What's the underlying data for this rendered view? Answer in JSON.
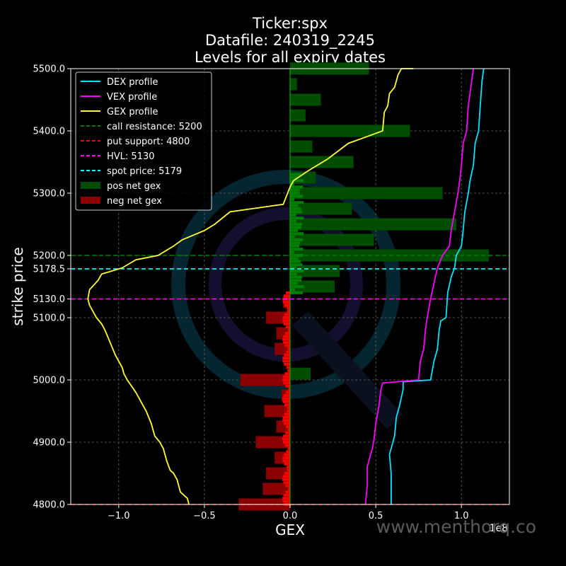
{
  "chart_data": {
    "type": "bar",
    "title_lines": [
      "Ticker:spx",
      "Datafile: 240319_2245",
      "Levels for all expiry dates"
    ],
    "xlabel": "GEX",
    "ylabel": "strike price",
    "x_offset_text": "1e8",
    "xlim": [
      -1.28,
      1.28
    ],
    "ylim": [
      4800,
      5500
    ],
    "grid": true,
    "legend_position": "top-left",
    "watermark": "www.menthorq.co",
    "x_ticks": [
      {
        "v": -1.0,
        "label": "−1.0"
      },
      {
        "v": -0.5,
        "label": "−0.5"
      },
      {
        "v": 0.0,
        "label": "0.0"
      },
      {
        "v": 0.5,
        "label": "0.5"
      },
      {
        "v": 1.0,
        "label": "1.0"
      }
    ],
    "y_ticks": [
      {
        "v": 4800,
        "label": "4800.0"
      },
      {
        "v": 4900,
        "label": "4900.0"
      },
      {
        "v": 5000,
        "label": "5000.0"
      },
      {
        "v": 5100,
        "label": "5100.0"
      },
      {
        "v": 5130,
        "label": "5130.0"
      },
      {
        "v": 5178.5,
        "label": "5178.5"
      },
      {
        "v": 5200,
        "label": "5200.0"
      },
      {
        "v": 5300,
        "label": "5300.0"
      },
      {
        "v": 5400,
        "label": "5400.0"
      },
      {
        "v": 5500,
        "label": "5500.0"
      }
    ],
    "levels": [
      {
        "name": "call resistance: 5200",
        "y": 5200,
        "color": "#008000"
      },
      {
        "name": "put support: 4800",
        "y": 4800,
        "color": "#ff0000"
      },
      {
        "name": "HVL: 5130",
        "y": 5130,
        "color": "#ff00ff"
      },
      {
        "name": "spot price: 5179",
        "y": 5178.5,
        "color": "#00ffff"
      }
    ],
    "bar_series": [
      {
        "name": "pos net gex",
        "color": "#004d00"
      },
      {
        "name": "neg net gex",
        "color": "#8b0000"
      }
    ],
    "pos_gex": [
      {
        "strike": 5500,
        "value": 0.46
      },
      {
        "strike": 5475,
        "value": 0.04
      },
      {
        "strike": 5450,
        "value": 0.18
      },
      {
        "strike": 5425,
        "value": 0.09
      },
      {
        "strike": 5400,
        "value": 0.7
      },
      {
        "strike": 5375,
        "value": 0.13
      },
      {
        "strike": 5350,
        "value": 0.37
      },
      {
        "strike": 5325,
        "value": 0.15
      },
      {
        "strike": 5300,
        "value": 0.89
      },
      {
        "strike": 5275,
        "value": 0.36
      },
      {
        "strike": 5250,
        "value": 0.97
      },
      {
        "strike": 5225,
        "value": 0.49
      },
      {
        "strike": 5200,
        "value": 1.16
      },
      {
        "strike": 5175,
        "value": 0.29
      },
      {
        "strike": 5150,
        "value": 0.26
      },
      {
        "strike": 5010,
        "value": 0.12
      }
    ],
    "neg_gex": [
      {
        "strike": 5125,
        "value": -0.04
      },
      {
        "strike": 5100,
        "value": -0.14
      },
      {
        "strike": 5075,
        "value": -0.08
      },
      {
        "strike": 5050,
        "value": -0.09
      },
      {
        "strike": 5000,
        "value": -0.29
      },
      {
        "strike": 4975,
        "value": -0.05
      },
      {
        "strike": 4950,
        "value": -0.15
      },
      {
        "strike": 4925,
        "value": -0.08
      },
      {
        "strike": 4900,
        "value": -0.2
      },
      {
        "strike": 4875,
        "value": -0.09
      },
      {
        "strike": 4850,
        "value": -0.14
      },
      {
        "strike": 4825,
        "value": -0.16
      },
      {
        "strike": 4800,
        "value": -0.3
      }
    ],
    "series": [
      {
        "name": "DEX profile",
        "color": "#00e5ff",
        "points": [
          [
            0.59,
            4800
          ],
          [
            0.59,
            4850
          ],
          [
            0.58,
            4880
          ],
          [
            0.6,
            4900
          ],
          [
            0.61,
            4910
          ],
          [
            0.62,
            4940
          ],
          [
            0.64,
            4960
          ],
          [
            0.66,
            4985
          ],
          [
            0.66,
            4997
          ],
          [
            0.82,
            5000
          ],
          [
            0.84,
            5030
          ],
          [
            0.86,
            5050
          ],
          [
            0.87,
            5080
          ],
          [
            0.88,
            5095
          ],
          [
            0.91,
            5100
          ],
          [
            0.92,
            5140
          ],
          [
            0.94,
            5165
          ],
          [
            0.96,
            5180
          ],
          [
            0.97,
            5200
          ],
          [
            1.0,
            5215
          ],
          [
            1.01,
            5240
          ],
          [
            1.02,
            5270
          ],
          [
            1.04,
            5300
          ],
          [
            1.05,
            5320
          ],
          [
            1.07,
            5345
          ],
          [
            1.08,
            5380
          ],
          [
            1.1,
            5400
          ],
          [
            1.11,
            5440
          ],
          [
            1.12,
            5480
          ],
          [
            1.13,
            5500
          ]
        ]
      },
      {
        "name": "VEX profile",
        "color": "#ff00ff",
        "points": [
          [
            0.44,
            4800
          ],
          [
            0.45,
            4830
          ],
          [
            0.45,
            4860
          ],
          [
            0.47,
            4880
          ],
          [
            0.48,
            4890
          ],
          [
            0.49,
            4905
          ],
          [
            0.5,
            4930
          ],
          [
            0.52,
            4960
          ],
          [
            0.53,
            4985
          ],
          [
            0.54,
            4995
          ],
          [
            0.75,
            5000
          ],
          [
            0.76,
            5030
          ],
          [
            0.78,
            5050
          ],
          [
            0.79,
            5080
          ],
          [
            0.8,
            5100
          ],
          [
            0.82,
            5130
          ],
          [
            0.84,
            5155
          ],
          [
            0.86,
            5180
          ],
          [
            0.89,
            5200
          ],
          [
            0.93,
            5215
          ],
          [
            0.94,
            5240
          ],
          [
            0.96,
            5270
          ],
          [
            0.98,
            5300
          ],
          [
            0.99,
            5320
          ],
          [
            1.0,
            5345
          ],
          [
            1.01,
            5380
          ],
          [
            1.03,
            5400
          ],
          [
            1.04,
            5440
          ],
          [
            1.06,
            5480
          ],
          [
            1.07,
            5500
          ]
        ]
      },
      {
        "name": "GEX profile",
        "color": "#ffff33",
        "points": [
          [
            -0.59,
            4800
          ],
          [
            -0.6,
            4810
          ],
          [
            -0.62,
            4815
          ],
          [
            -0.64,
            4820
          ],
          [
            -0.66,
            4840
          ],
          [
            -0.68,
            4850
          ],
          [
            -0.7,
            4855
          ],
          [
            -0.72,
            4870
          ],
          [
            -0.73,
            4880
          ],
          [
            -0.74,
            4890
          ],
          [
            -0.76,
            4900
          ],
          [
            -0.79,
            4910
          ],
          [
            -0.81,
            4930
          ],
          [
            -0.84,
            4950
          ],
          [
            -0.86,
            4960
          ],
          [
            -0.88,
            4970
          ],
          [
            -0.9,
            4980
          ],
          [
            -0.95,
            5000
          ],
          [
            -0.97,
            5010
          ],
          [
            -0.98,
            5020
          ],
          [
            -1.02,
            5040
          ],
          [
            -1.05,
            5060
          ],
          [
            -1.08,
            5080
          ],
          [
            -1.1,
            5090
          ],
          [
            -1.13,
            5100
          ],
          [
            -1.17,
            5120
          ],
          [
            -1.18,
            5130
          ],
          [
            -1.17,
            5145
          ],
          [
            -1.12,
            5160
          ],
          [
            -1.1,
            5170
          ],
          [
            -0.98,
            5180
          ],
          [
            -0.9,
            5193
          ],
          [
            -0.77,
            5200
          ],
          [
            -0.68,
            5215
          ],
          [
            -0.63,
            5225
          ],
          [
            -0.5,
            5240
          ],
          [
            -0.44,
            5250
          ],
          [
            -0.35,
            5270
          ],
          [
            -0.04,
            5282
          ],
          [
            0.0,
            5310
          ],
          [
            0.02,
            5320
          ],
          [
            0.1,
            5335
          ],
          [
            0.22,
            5355
          ],
          [
            0.34,
            5380
          ],
          [
            0.44,
            5390
          ],
          [
            0.54,
            5400
          ],
          [
            0.55,
            5430
          ],
          [
            0.57,
            5440
          ],
          [
            0.58,
            5460
          ],
          [
            0.61,
            5470
          ],
          [
            0.63,
            5490
          ],
          [
            0.65,
            5500
          ],
          [
            0.7,
            5500
          ],
          [
            0.72,
            5500
          ]
        ]
      }
    ]
  }
}
